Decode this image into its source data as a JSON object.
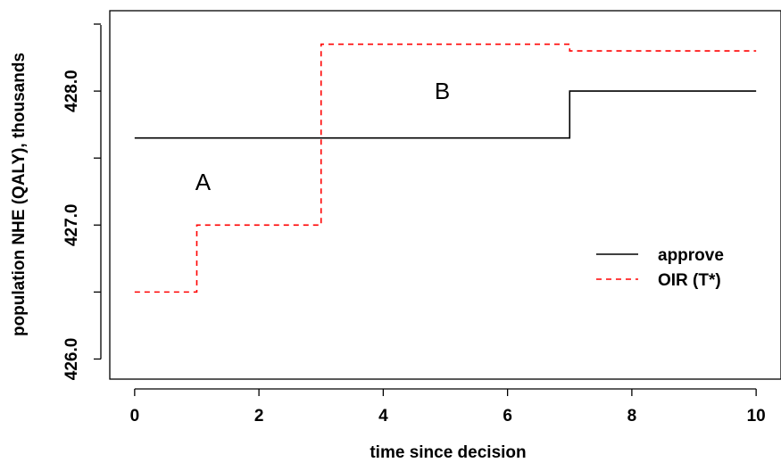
{
  "chart_data": {
    "type": "line",
    "xlabel": "time since decision",
    "ylabel": "population NHE (QALY), thousands",
    "xlim": [
      -0.4,
      10.4
    ],
    "ylim": [
      425.85,
      428.6
    ],
    "xticks": [
      0,
      2,
      4,
      6,
      8,
      10
    ],
    "yticks": [
      426.0,
      427.0,
      428.0
    ],
    "ytick_labels": [
      "426.0",
      "427.0",
      "428.0"
    ],
    "grid": false,
    "legend_position": "right",
    "series": [
      {
        "name": "approve",
        "color": "#000000",
        "dash": "solid",
        "step": true,
        "x": [
          0,
          7,
          10
        ],
        "y": [
          427.65,
          428.0,
          428.0
        ]
      },
      {
        "name": "OIR (T*)",
        "color": "#ff0000",
        "dash": "dashed",
        "step": true,
        "x": [
          0,
          1,
          3,
          7,
          10
        ],
        "y": [
          426.5,
          427.0,
          428.35,
          428.3,
          428.3
        ]
      }
    ],
    "annotations": [
      {
        "text": "A",
        "x": 1.1,
        "y": 427.32
      },
      {
        "text": "B",
        "x": 4.95,
        "y": 428.0
      }
    ]
  }
}
